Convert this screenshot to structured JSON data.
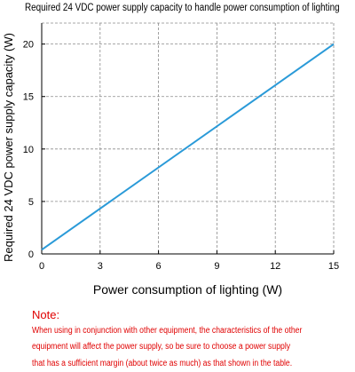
{
  "chart_data": {
    "type": "line",
    "title": "Required 24 VDC power supply capacity to handle power consumption of lighting",
    "xlabel": "Power consumption of lighting (W)",
    "ylabel": "Required 24 VDC power supply capacity (W)",
    "xlim": [
      0,
      15
    ],
    "ylim": [
      0,
      22
    ],
    "x_ticks": [
      "0",
      "3",
      "6",
      "9",
      "12",
      "15"
    ],
    "y_ticks": [
      "0",
      "5",
      "10",
      "15",
      "20"
    ],
    "grid": true,
    "series": [
      {
        "x": [
          0,
          15
        ],
        "y": [
          0.4,
          20.0
        ]
      }
    ],
    "colors": {
      "line": "#2a9ad8",
      "grid": "#8a8a8a",
      "axis": "#000000"
    }
  },
  "note": {
    "heading": "Note:",
    "lines": [
      "When using in conjunction with other equipment, the characteristics of the other",
      "equipment will affect the power supply, so be sure to choose a power supply",
      "that has a sufficient margin (about twice as much) as that shown in the table."
    ],
    "color": "#e00000"
  }
}
